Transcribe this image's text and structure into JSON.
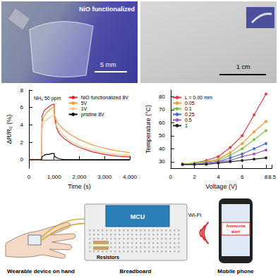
{
  "photos": [
    {
      "label": "NiO functionalized",
      "scale_bar": "5 mm"
    },
    {
      "scale_bar": "1 cm"
    }
  ],
  "chart_data": [
    {
      "type": "line",
      "title": "NH₃ 50 ppm",
      "x_label": "Time (s)",
      "y_label": "ΔR/R₀ (%)",
      "x": [
        0,
        300,
        480,
        500,
        520,
        600,
        700,
        800,
        900,
        1000,
        1010,
        1100,
        1200,
        1400,
        1700,
        2000,
        2500,
        3000,
        3500,
        4000
      ],
      "series": [
        {
          "name": "NiO functionalized 8V",
          "color": "#d62728",
          "values": [
            0,
            0,
            0,
            0.3,
            5.0,
            5.6,
            5.9,
            6.1,
            6.3,
            6.4,
            5.0,
            3.6,
            3.0,
            2.4,
            1.8,
            1.4,
            0.9,
            0.6,
            0.4,
            0.3
          ]
        },
        {
          "name": "5V",
          "color": "#f39a3c",
          "values": [
            0,
            0,
            0,
            0.2,
            4.3,
            5.0,
            5.4,
            5.7,
            5.9,
            6.1,
            5.2,
            4.4,
            4.0,
            3.4,
            2.8,
            2.3,
            1.7,
            1.3,
            1.0,
            0.8
          ]
        },
        {
          "name": "1V",
          "color": "#f7c48e",
          "values": [
            0,
            0,
            0,
            0.1,
            3.5,
            4.3,
            4.6,
            4.8,
            5.0,
            5.2,
            4.3,
            3.8,
            3.3,
            2.7,
            2.0,
            1.6,
            1.1,
            0.8,
            0.6,
            0.5
          ]
        },
        {
          "name": "pristine 8V",
          "color": "#000000",
          "values": [
            0,
            0,
            0,
            0,
            0.3,
            0.5,
            0.6,
            0.6,
            0.7,
            0.7,
            0.4,
            0.2,
            0.1,
            0,
            0,
            0,
            0,
            0,
            0,
            0
          ]
        }
      ],
      "xlim": [
        0,
        4000
      ],
      "xticks": [
        0,
        1000,
        2000,
        3000,
        4000
      ],
      "ylim": [
        -1,
        8
      ],
      "yticks": [
        0,
        2,
        4,
        6,
        8
      ],
      "marker": "none",
      "line_style": "solid",
      "legend": "upper right",
      "grid": false
    },
    {
      "type": "line",
      "x_label": "Voltage (V)",
      "y_label": "Temperature (°C)",
      "x": [
        1,
        2,
        3,
        4,
        5,
        6,
        7,
        8
      ],
      "series": [
        {
          "name": "L = 0.00 mm",
          "color": "#e8383d",
          "values": [
            28,
            29,
            31,
            34,
            41,
            50,
            66,
            82
          ]
        },
        {
          "name": "0.05",
          "color": "#f39a3c",
          "values": [
            28,
            29,
            30,
            32,
            37,
            44,
            53,
            61
          ]
        },
        {
          "name": "0.1",
          "color": "#7cc242",
          "values": [
            28,
            29,
            30,
            31,
            35,
            40,
            47,
            54
          ]
        },
        {
          "name": "0.25",
          "color": "#3f6fd1",
          "values": [
            28,
            28,
            29,
            30,
            33,
            36,
            40,
            44
          ]
        },
        {
          "name": "0.5",
          "color": "#9b59b6",
          "values": [
            28,
            28,
            29,
            30,
            31,
            34,
            36,
            39
          ]
        },
        {
          "name": "1",
          "color": "#222222",
          "values": [
            28,
            28,
            28,
            29,
            30,
            31,
            32,
            33
          ]
        }
      ],
      "xlim": [
        0,
        8.5
      ],
      "xticks": [
        0,
        2,
        4,
        6,
        8
      ],
      "ylim": [
        25,
        85
      ],
      "yticks": [
        30,
        40,
        50,
        60,
        70,
        80
      ],
      "marker": "circle",
      "line_style": "solid",
      "legend": "upper left",
      "grid": false
    }
  ],
  "diagram": {
    "device": "Wearable device on hand",
    "board": "Breadboard",
    "mcu": "MCU",
    "resistors": "Resistors",
    "link": "Wi-Fi",
    "phone": "Mobile phone",
    "alert": "Ammonia alert"
  }
}
